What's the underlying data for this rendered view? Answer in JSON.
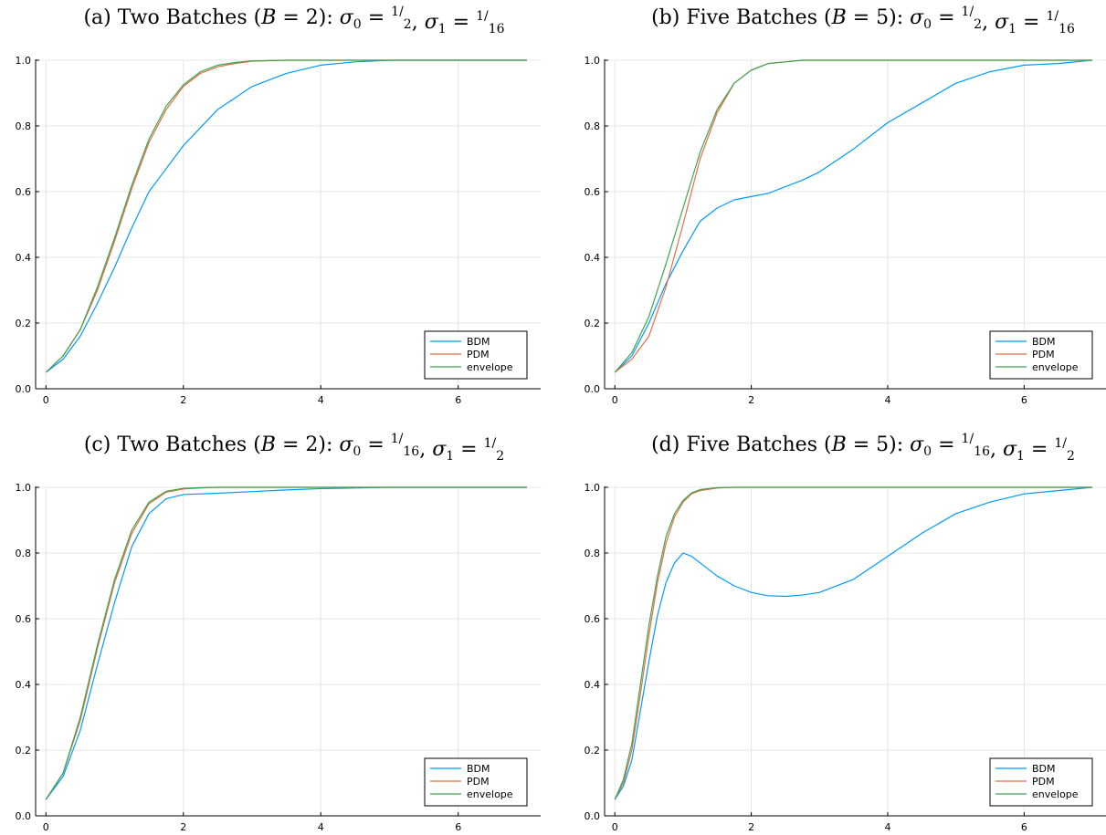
{
  "chart_data": [
    {
      "type": "line",
      "title_parts": {
        "prefix": "(a) Two Batches (",
        "B": "B",
        "eq": " = 2): ",
        "s": "σ",
        "sub0": "0",
        "sub1": "1",
        "eqs": " = ",
        "comma": ", ",
        "close": ")"
      },
      "fractions": [
        {
          "num": "1",
          "den": "2"
        },
        {
          "num": "1",
          "den": "16"
        }
      ],
      "xlim": [
        0,
        7
      ],
      "ylim": [
        0,
        1
      ],
      "xticks": [
        0,
        2,
        4,
        6
      ],
      "yticks": [
        0.0,
        0.2,
        0.4,
        0.6,
        0.8,
        1.0
      ],
      "xtick_labels": [
        "0",
        "2",
        "4",
        "6"
      ],
      "ytick_labels": [
        "0.0",
        "0.2",
        "0.4",
        "0.6",
        "0.8",
        "1.0"
      ],
      "grid": true,
      "legend": "bottom-right",
      "series": [
        {
          "name": "BDM",
          "color": "#009AFA",
          "x": [
            0,
            0.25,
            0.5,
            0.75,
            1.0,
            1.25,
            1.5,
            1.75,
            2.0,
            2.5,
            3.0,
            3.5,
            4.0,
            4.5,
            5.0,
            5.5,
            6.0,
            7.0
          ],
          "y": [
            0.05,
            0.09,
            0.16,
            0.26,
            0.37,
            0.49,
            0.6,
            0.67,
            0.74,
            0.85,
            0.92,
            0.96,
            0.985,
            0.995,
            1.0,
            1.0,
            1.0,
            1.0
          ]
        },
        {
          "name": "PDM",
          "color": "#E36F47",
          "x": [
            0,
            0.25,
            0.5,
            0.75,
            1.0,
            1.25,
            1.5,
            1.75,
            2.0,
            2.25,
            2.5,
            2.75,
            3.0,
            3.5,
            4.0,
            5.0,
            6.0,
            7.0
          ],
          "y": [
            0.05,
            0.1,
            0.18,
            0.3,
            0.45,
            0.61,
            0.75,
            0.85,
            0.92,
            0.96,
            0.98,
            0.99,
            0.997,
            1.0,
            1.0,
            1.0,
            1.0,
            1.0
          ]
        },
        {
          "name": "envelope",
          "color": "#3EA44E",
          "x": [
            0,
            0.25,
            0.5,
            0.75,
            1.0,
            1.25,
            1.5,
            1.75,
            2.0,
            2.25,
            2.5,
            2.75,
            3.0,
            3.5,
            4.0,
            5.0,
            6.0,
            7.0
          ],
          "y": [
            0.05,
            0.1,
            0.18,
            0.31,
            0.46,
            0.62,
            0.76,
            0.86,
            0.925,
            0.965,
            0.985,
            0.993,
            0.998,
            1.0,
            1.0,
            1.0,
            1.0,
            1.0
          ]
        }
      ]
    },
    {
      "type": "line",
      "title_parts": {
        "prefix": "(b) Five Batches (",
        "B": "B",
        "eq": " = 5): ",
        "s": "σ",
        "sub0": "0",
        "sub1": "1",
        "eqs": " = ",
        "comma": ", ",
        "close": ")"
      },
      "fractions": [
        {
          "num": "1",
          "den": "2"
        },
        {
          "num": "1",
          "den": "16"
        }
      ],
      "xlim": [
        0,
        7
      ],
      "ylim": [
        0,
        1
      ],
      "xticks": [
        0,
        2,
        4,
        6
      ],
      "yticks": [
        0.0,
        0.2,
        0.4,
        0.6,
        0.8,
        1.0
      ],
      "xtick_labels": [
        "0",
        "2",
        "4",
        "6"
      ],
      "ytick_labels": [
        "0.0",
        "0.2",
        "0.4",
        "0.6",
        "0.8",
        "1.0"
      ],
      "grid": true,
      "legend": "bottom-right",
      "series": [
        {
          "name": "BDM",
          "color": "#009AFA",
          "x": [
            0,
            0.25,
            0.5,
            0.75,
            1.0,
            1.25,
            1.5,
            1.75,
            2.0,
            2.25,
            2.5,
            2.75,
            3.0,
            3.5,
            4.0,
            4.5,
            5.0,
            5.5,
            6.0,
            6.5,
            7.0
          ],
          "y": [
            0.05,
            0.1,
            0.2,
            0.32,
            0.42,
            0.51,
            0.55,
            0.575,
            0.585,
            0.595,
            0.615,
            0.635,
            0.66,
            0.73,
            0.81,
            0.87,
            0.93,
            0.965,
            0.985,
            0.99,
            1.0
          ]
        },
        {
          "name": "PDM",
          "color": "#E36F47",
          "x": [
            0,
            0.25,
            0.5,
            0.75,
            1.0,
            1.25,
            1.5,
            1.75,
            2.0,
            2.25,
            2.5,
            2.75,
            3.0,
            3.5,
            4.0,
            5.0,
            6.0,
            7.0
          ],
          "y": [
            0.05,
            0.09,
            0.16,
            0.31,
            0.5,
            0.7,
            0.84,
            0.93,
            0.97,
            0.99,
            0.995,
            1.0,
            1.0,
            1.0,
            1.0,
            1.0,
            1.0,
            1.0
          ]
        },
        {
          "name": "envelope",
          "color": "#3EA44E",
          "x": [
            0,
            0.25,
            0.5,
            0.75,
            1.0,
            1.25,
            1.5,
            1.75,
            2.0,
            2.25,
            2.5,
            2.75,
            3.0,
            3.5,
            4.0,
            5.0,
            6.0,
            7.0
          ],
          "y": [
            0.05,
            0.11,
            0.22,
            0.38,
            0.55,
            0.72,
            0.85,
            0.93,
            0.97,
            0.99,
            0.995,
            1.0,
            1.0,
            1.0,
            1.0,
            1.0,
            1.0,
            1.0
          ]
        }
      ]
    },
    {
      "type": "line",
      "title_parts": {
        "prefix": "(c) Two Batches (",
        "B": "B",
        "eq": " = 2): ",
        "s": "σ",
        "sub0": "0",
        "sub1": "1",
        "eqs": " = ",
        "comma": ", ",
        "close": ")"
      },
      "fractions": [
        {
          "num": "1",
          "den": "16"
        },
        {
          "num": "1",
          "den": "2"
        }
      ],
      "xlim": [
        0,
        7
      ],
      "ylim": [
        0,
        1
      ],
      "xticks": [
        0,
        2,
        4,
        6
      ],
      "yticks": [
        0.0,
        0.2,
        0.4,
        0.6,
        0.8,
        1.0
      ],
      "xtick_labels": [
        "0",
        "2",
        "4",
        "6"
      ],
      "ytick_labels": [
        "0.0",
        "0.2",
        "0.4",
        "0.6",
        "0.8",
        "1.0"
      ],
      "grid": true,
      "legend": "bottom-right",
      "series": [
        {
          "name": "BDM",
          "color": "#009AFA",
          "x": [
            0,
            0.25,
            0.5,
            0.75,
            1.0,
            1.25,
            1.5,
            1.75,
            2.0,
            2.5,
            3.0,
            3.5,
            4.0,
            5.0,
            6.0,
            7.0
          ],
          "y": [
            0.05,
            0.12,
            0.26,
            0.46,
            0.65,
            0.82,
            0.92,
            0.965,
            0.978,
            0.982,
            0.987,
            0.992,
            0.996,
            1.0,
            1.0,
            1.0
          ]
        },
        {
          "name": "PDM",
          "color": "#E36F47",
          "x": [
            0,
            0.25,
            0.5,
            0.75,
            1.0,
            1.25,
            1.5,
            1.75,
            2.0,
            2.25,
            2.5,
            3.0,
            4.0,
            5.0,
            6.0,
            7.0
          ],
          "y": [
            0.05,
            0.13,
            0.29,
            0.51,
            0.71,
            0.86,
            0.95,
            0.985,
            0.995,
            0.998,
            1.0,
            1.0,
            1.0,
            1.0,
            1.0,
            1.0
          ]
        },
        {
          "name": "envelope",
          "color": "#3EA44E",
          "x": [
            0,
            0.25,
            0.5,
            0.75,
            1.0,
            1.25,
            1.5,
            1.75,
            2.0,
            2.25,
            2.5,
            3.0,
            4.0,
            5.0,
            6.0,
            7.0
          ],
          "y": [
            0.05,
            0.13,
            0.3,
            0.52,
            0.72,
            0.87,
            0.955,
            0.988,
            0.997,
            0.999,
            1.0,
            1.0,
            1.0,
            1.0,
            1.0,
            1.0
          ]
        }
      ]
    },
    {
      "type": "line",
      "title_parts": {
        "prefix": "(d) Five Batches (",
        "B": "B",
        "eq": " = 5): ",
        "s": "σ",
        "sub0": "0",
        "sub1": "1",
        "eqs": " = ",
        "comma": ", ",
        "close": ")"
      },
      "fractions": [
        {
          "num": "1",
          "den": "16"
        },
        {
          "num": "1",
          "den": "2"
        }
      ],
      "xlim": [
        0,
        7
      ],
      "ylim": [
        0,
        1
      ],
      "xticks": [
        0,
        2,
        4,
        6
      ],
      "yticks": [
        0.0,
        0.2,
        0.4,
        0.6,
        0.8,
        1.0
      ],
      "xtick_labels": [
        "0",
        "2",
        "4",
        "6"
      ],
      "ytick_labels": [
        "0.0",
        "0.2",
        "0.4",
        "0.6",
        "0.8",
        "1.0"
      ],
      "grid": true,
      "legend": "bottom-right",
      "series": [
        {
          "name": "BDM",
          "color": "#009AFA",
          "x": [
            0,
            0.125,
            0.25,
            0.375,
            0.5,
            0.625,
            0.75,
            0.875,
            1.0,
            1.125,
            1.25,
            1.5,
            1.75,
            2.0,
            2.25,
            2.5,
            2.75,
            3.0,
            3.5,
            4.0,
            4.5,
            5.0,
            5.5,
            6.0,
            6.5,
            7.0
          ],
          "y": [
            0.05,
            0.09,
            0.17,
            0.32,
            0.47,
            0.61,
            0.71,
            0.77,
            0.8,
            0.79,
            0.77,
            0.73,
            0.7,
            0.68,
            0.67,
            0.668,
            0.672,
            0.68,
            0.72,
            0.79,
            0.86,
            0.92,
            0.955,
            0.98,
            0.99,
            1.0
          ]
        },
        {
          "name": "PDM",
          "color": "#E36F47",
          "x": [
            0,
            0.125,
            0.25,
            0.375,
            0.5,
            0.625,
            0.75,
            0.875,
            1.0,
            1.125,
            1.25,
            1.5,
            1.75,
            2.0,
            2.5,
            3.0,
            4.0,
            5.0,
            6.0,
            7.0
          ],
          "y": [
            0.05,
            0.1,
            0.2,
            0.37,
            0.55,
            0.71,
            0.83,
            0.91,
            0.955,
            0.98,
            0.99,
            0.998,
            1.0,
            1.0,
            1.0,
            1.0,
            1.0,
            1.0,
            1.0,
            1.0
          ]
        },
        {
          "name": "envelope",
          "color": "#3EA44E",
          "x": [
            0,
            0.125,
            0.25,
            0.375,
            0.5,
            0.625,
            0.75,
            0.875,
            1.0,
            1.125,
            1.25,
            1.5,
            1.75,
            2.0,
            2.5,
            3.0,
            4.0,
            5.0,
            6.0,
            7.0
          ],
          "y": [
            0.05,
            0.11,
            0.22,
            0.4,
            0.58,
            0.73,
            0.85,
            0.92,
            0.96,
            0.983,
            0.993,
            0.999,
            1.0,
            1.0,
            1.0,
            1.0,
            1.0,
            1.0,
            1.0,
            1.0
          ]
        }
      ]
    }
  ]
}
